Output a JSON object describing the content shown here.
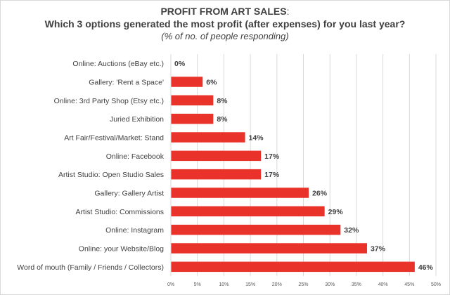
{
  "chart_data": {
    "type": "bar",
    "orientation": "horizontal",
    "title_main": "PROFIT FROM ART SALES",
    "title_suffix": ":",
    "subtitle": "Which 3 options generated the most profit (after expenses) for you last year?",
    "note": "(% of no. of people responding)",
    "categories": [
      "Online: Auctions (eBay etc.)",
      "Gallery: 'Rent a Space'",
      "Online: 3rd Party Shop (Etsy etc.)",
      "Juried Exhibition",
      "Art Fair/Festival/Market: Stand",
      "Online: Facebook",
      "Artist Studio: Open Studio Sales",
      "Gallery: Gallery Artist",
      "Artist Studio: Commissions",
      "Online: Instagram",
      "Online: your Website/Blog",
      "Word of mouth (Family / Friends / Collectors)"
    ],
    "values": [
      0,
      6,
      8,
      8,
      14,
      17,
      17,
      26,
      29,
      32,
      37,
      46
    ],
    "labels": [
      "0%",
      "6%",
      "8%",
      "8%",
      "14%",
      "17%",
      "17%",
      "26%",
      "29%",
      "32%",
      "37%",
      "46%"
    ],
    "xlim": [
      0,
      50
    ],
    "xticks": [
      "0%",
      "5%",
      "10%",
      "15%",
      "20%",
      "25%",
      "30%",
      "35%",
      "40%",
      "45%",
      "50%"
    ],
    "grid": true,
    "bar_color": "#e8322a",
    "grid_color": "#d9d9d9"
  }
}
